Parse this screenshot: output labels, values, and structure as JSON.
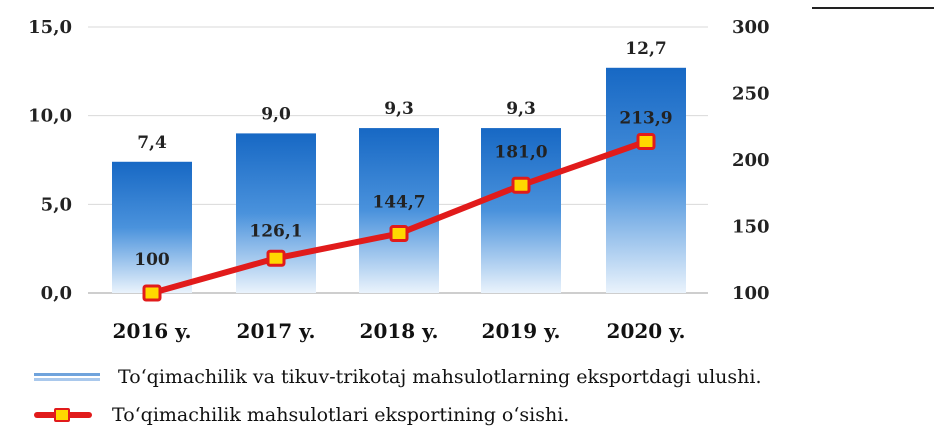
{
  "header_fragment": "",
  "chart_data": {
    "type": "bar",
    "categories": [
      "2016 y.",
      "2017 y.",
      "2018 y.",
      "2019 y.",
      "2020 y."
    ],
    "bar_values": [
      7.4,
      9.0,
      9.3,
      9.3,
      12.7
    ],
    "bar_labels": [
      "7,4",
      "9,0",
      "9,3",
      "9,3",
      "12,7"
    ],
    "line_values": [
      100,
      126.1,
      144.7,
      181.0,
      213.9
    ],
    "line_labels": [
      "100",
      "126,1",
      "144,7",
      "181,0",
      "213,9"
    ],
    "left_axis": {
      "ticks": [
        "0,0",
        "5,0",
        "10,0",
        "15,0"
      ],
      "tick_values": [
        0,
        5,
        10,
        15
      ],
      "range": [
        0,
        15
      ]
    },
    "right_axis": {
      "ticks": [
        "100",
        "150",
        "200",
        "250",
        "300"
      ],
      "tick_values": [
        100,
        150,
        200,
        250,
        300
      ],
      "range": [
        100,
        300
      ]
    },
    "grid": true,
    "legend": [
      "To‘qimachilik va tikuv-trikotaj mahsulotlarning eksportdagi ulushi.",
      "To‘qimachilik mahsulotlari eksportining o‘sishi."
    ],
    "colors": {
      "bar_top": "#1768c4",
      "bar_mid": "#5d9fe2",
      "bar_light": "#eaf3fc",
      "line": "#e11b1b",
      "marker": "#ffd800"
    }
  }
}
